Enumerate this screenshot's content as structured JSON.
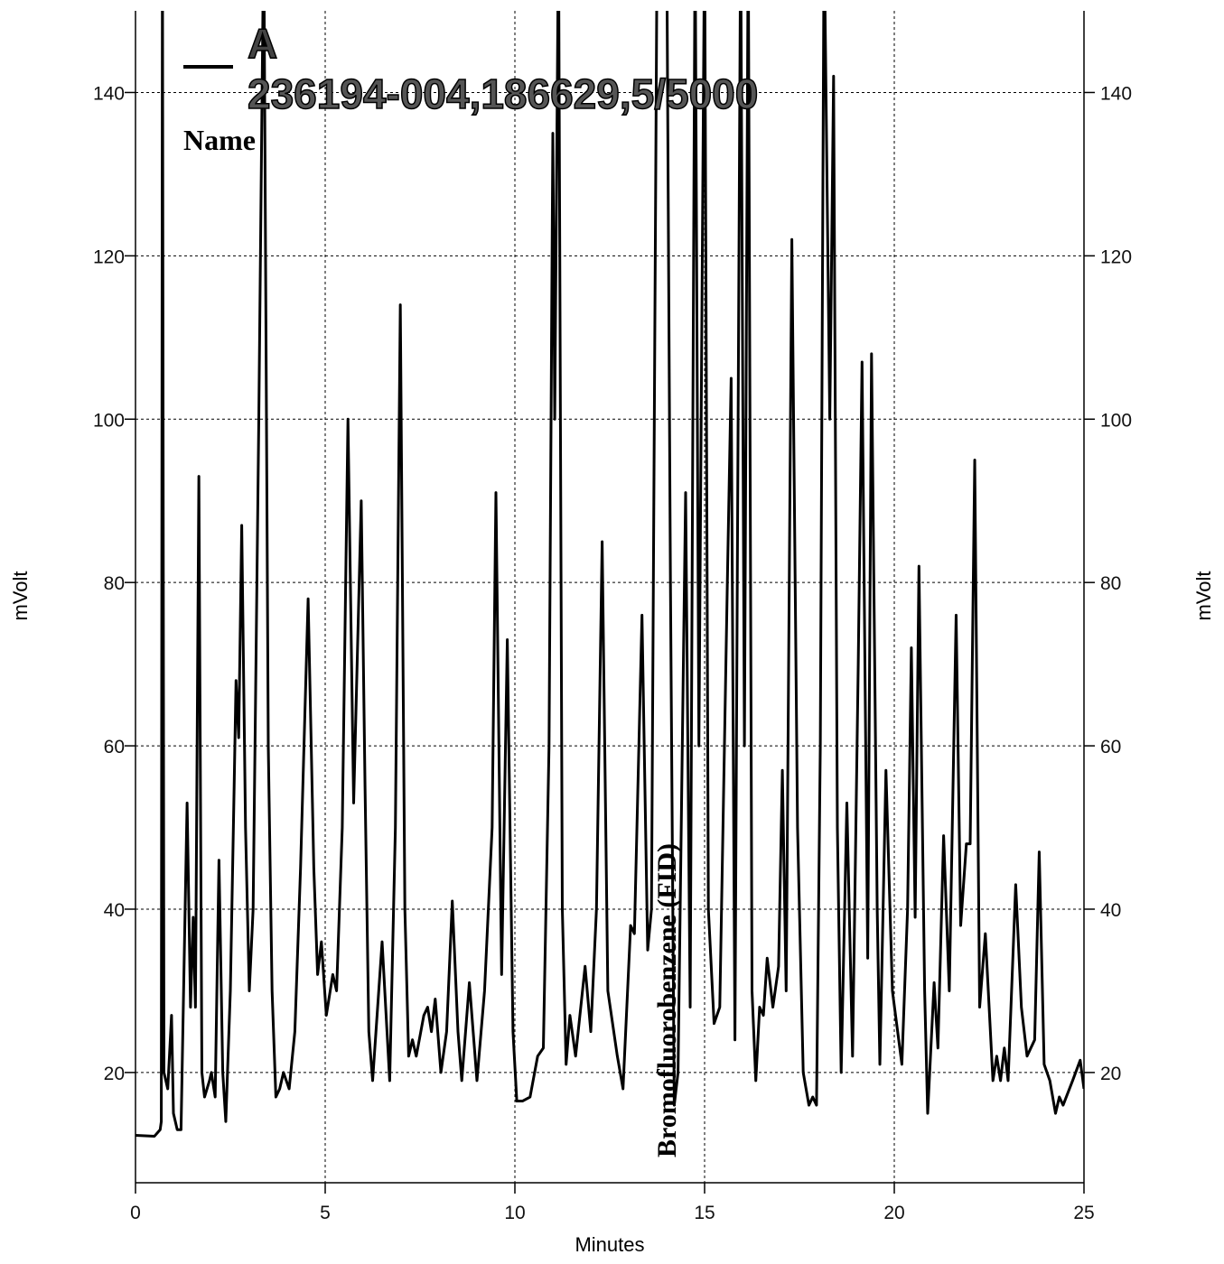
{
  "chart_data": {
    "type": "line",
    "title": "236194-004,186629,5/5000",
    "legend_title": "Name",
    "annotation": "Bromofluorobenzene (FID)",
    "annotation_x": 14,
    "xlabel": "Minutes",
    "ylabel": "mVolt",
    "y2label": "mVolt",
    "xlim": [
      0,
      25
    ],
    "xticks": [
      0,
      5,
      10,
      15,
      20,
      25
    ],
    "ylim": [
      6.5,
      150
    ],
    "yticks": [
      20,
      40,
      60,
      80,
      100,
      120,
      140
    ],
    "y2lim": [
      6.5,
      150
    ],
    "y2ticks": [
      20,
      40,
      60,
      80,
      100,
      120,
      140
    ],
    "grid": true,
    "x": [
      0,
      0.5,
      0.65,
      0.68,
      0.71,
      0.75,
      0.85,
      0.95,
      1.0,
      1.1,
      1.2,
      1.36,
      1.45,
      1.52,
      1.58,
      1.67,
      1.75,
      1.82,
      1.95,
      2.0,
      2.1,
      2.2,
      2.3,
      2.38,
      2.5,
      2.6,
      2.65,
      2.72,
      2.8,
      2.9,
      3.0,
      3.1,
      3.25,
      3.38,
      3.5,
      3.6,
      3.7,
      3.8,
      3.9,
      4.05,
      4.2,
      4.35,
      4.55,
      4.7,
      4.8,
      4.9,
      5.03,
      5.2,
      5.3,
      5.45,
      5.6,
      5.75,
      5.95,
      6.05,
      6.15,
      6.25,
      6.5,
      6.7,
      6.85,
      6.98,
      7.1,
      7.2,
      7.3,
      7.4,
      7.6,
      7.7,
      7.8,
      7.9,
      8.05,
      8.2,
      8.35,
      8.5,
      8.6,
      8.8,
      9.0,
      9.2,
      9.4,
      9.5,
      9.65,
      9.8,
      9.95,
      10.05,
      10.2,
      10.4,
      10.6,
      10.75,
      10.9,
      11.0,
      11.05,
      11.15,
      11.25,
      11.35,
      11.45,
      11.6,
      11.85,
      12.0,
      12.15,
      12.3,
      12.45,
      12.7,
      12.85,
      13.05,
      13.15,
      13.35,
      13.5,
      13.6,
      13.75,
      14.0,
      14.1,
      14.2,
      14.3,
      14.5,
      14.62,
      14.75,
      14.85,
      15.0,
      15.1,
      15.25,
      15.4,
      15.6,
      15.7,
      15.8,
      15.95,
      16.05,
      16.15,
      16.25,
      16.35,
      16.45,
      16.55,
      16.65,
      16.8,
      16.95,
      17.05,
      17.15,
      17.3,
      17.45,
      17.6,
      17.75,
      17.85,
      17.95,
      18.05,
      18.15,
      18.3,
      18.4,
      18.5,
      18.6,
      18.75,
      18.9,
      19.05,
      19.15,
      19.3,
      19.4,
      19.55,
      19.62,
      19.78,
      19.95,
      20.2,
      20.35,
      20.45,
      20.55,
      20.65,
      20.8,
      20.88,
      21.05,
      21.15,
      21.3,
      21.45,
      21.63,
      21.75,
      21.9,
      22.0,
      22.12,
      22.25,
      22.4,
      22.6,
      22.7,
      22.8,
      22.9,
      23.0,
      23.2,
      23.35,
      23.5,
      23.7,
      23.82,
      23.95,
      24.1,
      24.25,
      24.35,
      24.45,
      24.7,
      24.9,
      25
    ],
    "series": [
      {
        "name": "A",
        "color": "#000000",
        "values": [
          12.3,
          12.2,
          13,
          14,
          160,
          20,
          18,
          27,
          15,
          13,
          13,
          53,
          28,
          39,
          28,
          93,
          20,
          17,
          19,
          20,
          17,
          46,
          20,
          14,
          30,
          55,
          68,
          61,
          87,
          50,
          30,
          40,
          100,
          160,
          60,
          30,
          17,
          18,
          20,
          18,
          25,
          45,
          78,
          45,
          32,
          36,
          27,
          32,
          30,
          50,
          100,
          53,
          90,
          55,
          25,
          19,
          36,
          19,
          50,
          114,
          40,
          22,
          24,
          22,
          27,
          28,
          25,
          29,
          20,
          25,
          41,
          25,
          19,
          31,
          19,
          30,
          50,
          91,
          32,
          73,
          25,
          16.5,
          16.5,
          17,
          22,
          23,
          60,
          135,
          100,
          160,
          40,
          21,
          27,
          22,
          33,
          25,
          40,
          85,
          30,
          22,
          18,
          38,
          37,
          76,
          35,
          40,
          160,
          160,
          80,
          16,
          20,
          91,
          28,
          160,
          60,
          160,
          40,
          26,
          28,
          80,
          105,
          24,
          160,
          60,
          160,
          30,
          19,
          28,
          27,
          34,
          28,
          33,
          57,
          30,
          122,
          50,
          20,
          16,
          17,
          16,
          60,
          160,
          100,
          142,
          50,
          20,
          53,
          22,
          70,
          107,
          34,
          108,
          40,
          21,
          57,
          30,
          21,
          40,
          72,
          39,
          82,
          30,
          15,
          31,
          23,
          49,
          30,
          76,
          38,
          48,
          48,
          95,
          28,
          37,
          19,
          22,
          19,
          23,
          19,
          43,
          28,
          22,
          24,
          47,
          21,
          19,
          15,
          17,
          16,
          19,
          21.5,
          18
        ]
      }
    ]
  }
}
